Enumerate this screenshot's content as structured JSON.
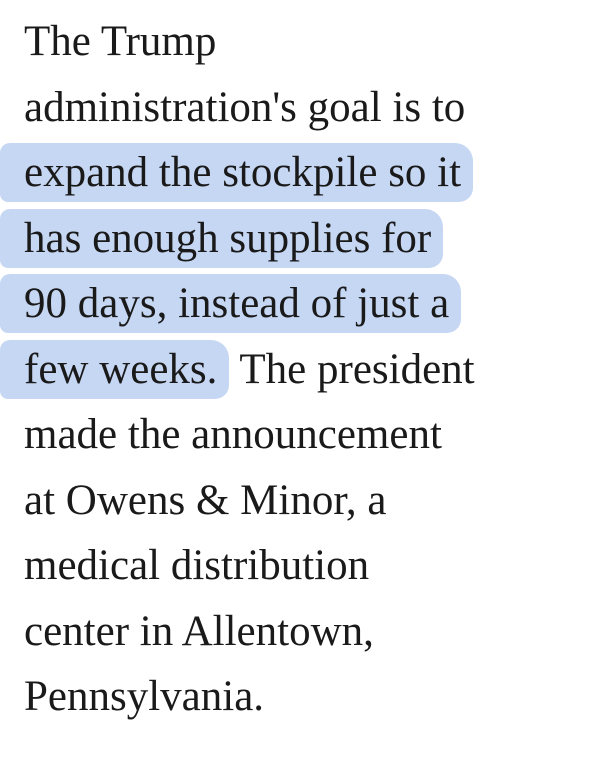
{
  "paragraph": {
    "lines": [
      [
        {
          "text": "The Trump",
          "highlight": false
        }
      ],
      [
        {
          "text": "administration's goal is to",
          "highlight": false
        }
      ],
      [
        {
          "text": "expand the stockpile so it",
          "highlight": true
        }
      ],
      [
        {
          "text": "has enough supplies for",
          "highlight": true
        }
      ],
      [
        {
          "text": "90 days, instead of just a",
          "highlight": true
        }
      ],
      [
        {
          "text": "few weeks.",
          "highlight": true
        },
        {
          "text": "The president",
          "highlight": false
        }
      ],
      [
        {
          "text": "made the announcement",
          "highlight": false
        }
      ],
      [
        {
          "text": "at Owens & Minor, a",
          "highlight": false
        }
      ],
      [
        {
          "text": "medical distribution",
          "highlight": false
        }
      ],
      [
        {
          "text": "center in Allentown,",
          "highlight": false
        }
      ],
      [
        {
          "text": "Pennsylvania.",
          "highlight": false
        }
      ]
    ]
  }
}
